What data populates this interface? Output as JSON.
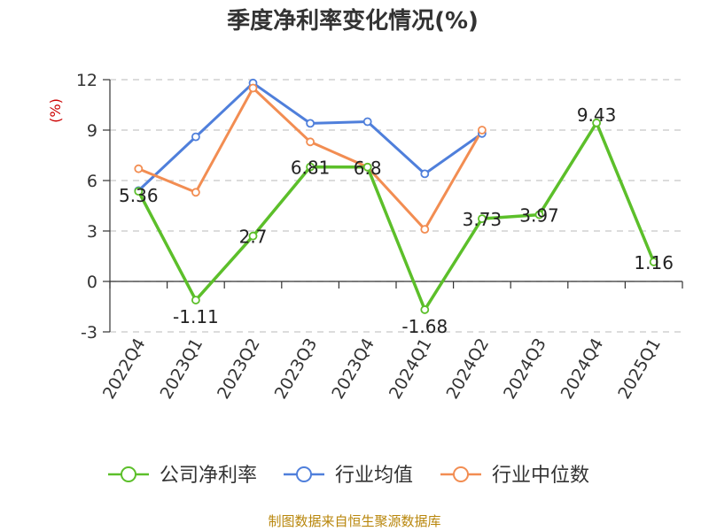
{
  "chart_data": {
    "type": "line",
    "title": "季度净利率变化情况(%)",
    "ylabel": "(%)",
    "ylim": [
      -3,
      12
    ],
    "yticks": [
      12,
      9,
      6,
      3,
      0,
      -3
    ],
    "categories": [
      "2022Q4",
      "2023Q1",
      "2023Q2",
      "2023Q3",
      "2023Q4",
      "2024Q1",
      "2024Q2",
      "2024Q3",
      "2024Q4",
      "2025Q1"
    ],
    "series": [
      {
        "name": "公司净利率",
        "color": "#5cbf2a",
        "values": [
          5.36,
          -1.11,
          2.7,
          6.81,
          6.8,
          -1.68,
          3.73,
          3.97,
          9.43,
          1.16
        ],
        "labels": [
          "5.36",
          "-1.11",
          "2.7",
          "6.81",
          "6.8",
          "-1.68",
          "3.73",
          "3.97",
          "9.43",
          "1.16"
        ]
      },
      {
        "name": "行业均值",
        "color": "#4f7fdb",
        "values": [
          5.4,
          8.6,
          11.8,
          9.4,
          9.5,
          6.4,
          8.8,
          null,
          null,
          null
        ]
      },
      {
        "name": "行业中位数",
        "color": "#f28d52",
        "values": [
          6.7,
          5.3,
          11.5,
          8.3,
          6.8,
          3.1,
          9.0,
          null,
          null,
          null
        ]
      }
    ],
    "grid": true,
    "legend_position": "bottom"
  },
  "source": "制图数据来自恒生聚源数据库"
}
